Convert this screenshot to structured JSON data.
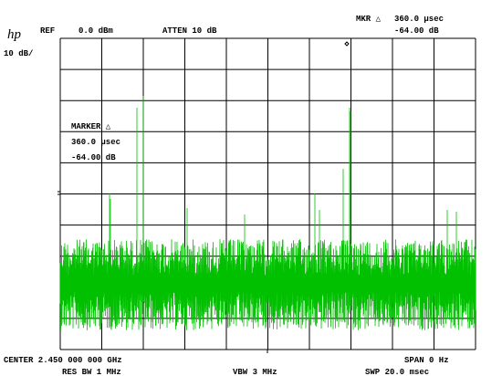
{
  "header": {
    "ref_label": "REF",
    "ref_value": "0.0 dBm",
    "atten": "ATTEN 10 dB",
    "marker_readout": {
      "label": "MKR △",
      "time": "360.0 μsec",
      "level": "-64.00 dB"
    },
    "logo": "hp",
    "scale": "10 dB/"
  },
  "marker_box": {
    "label": "MARKER △",
    "time": "360.0 μsec",
    "level": "-64.00 dB"
  },
  "footer": {
    "center": "CENTER 2.450 000 000 GHz",
    "span": "SPAN 0 Hz",
    "res_bw": "RES BW 1 MHz",
    "vbw": "VBW 3 MHz",
    "sweep": "SWP 20.0 msec"
  }
}
